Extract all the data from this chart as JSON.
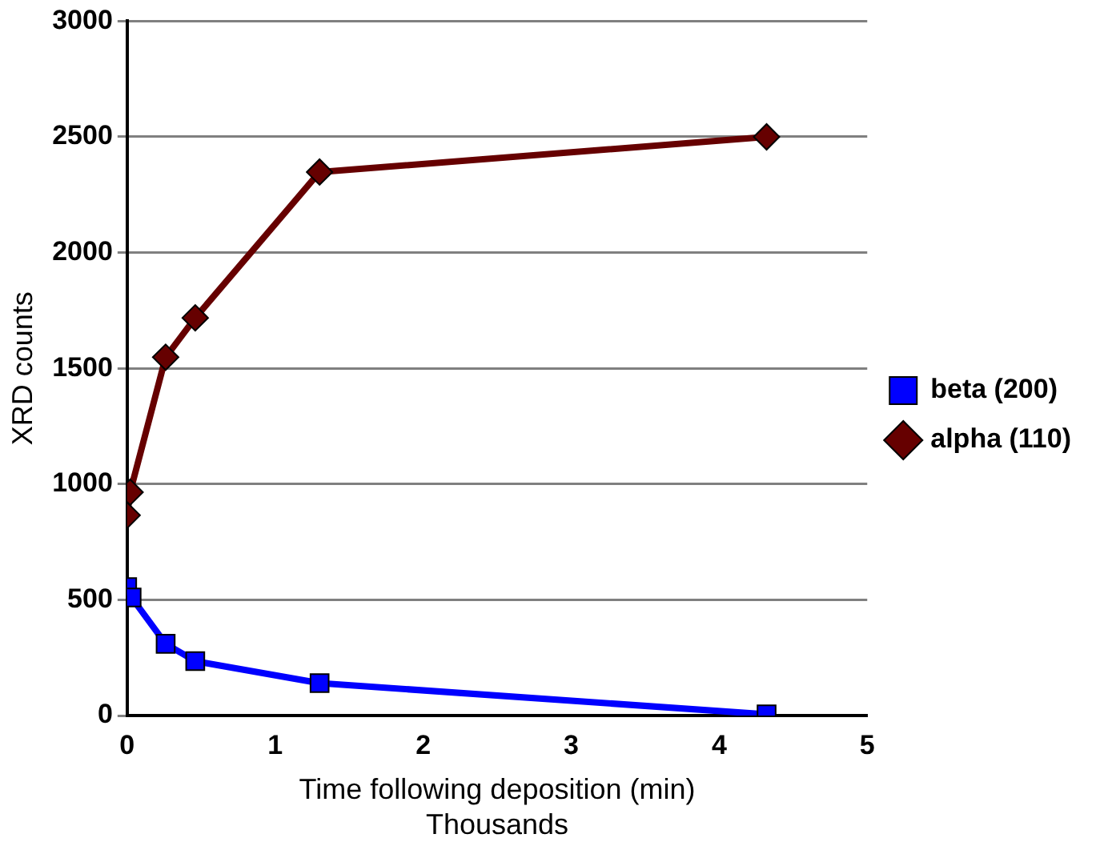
{
  "chart_data": {
    "type": "line",
    "xlabel": "Time following deposition (min)",
    "ylabel": "XRD counts",
    "annotations": [
      "Thousands"
    ],
    "series": [
      {
        "name": "beta (200)",
        "color": "#0000ff",
        "marker": "square",
        "x": [
          0,
          0.03,
          0.26,
          0.46,
          1.3,
          4.32
        ],
        "values": [
          555,
          510,
          310,
          235,
          140,
          5
        ]
      },
      {
        "name": "alpha (110)",
        "color": "#660000",
        "marker": "diamond",
        "x": [
          0,
          0.02,
          0.26,
          0.46,
          1.3,
          4.32
        ],
        "values": [
          865,
          965,
          1548,
          1718,
          2348,
          2500
        ]
      }
    ],
    "xlim": [
      0,
      5
    ],
    "xticks": [
      0,
      1,
      2,
      3,
      4,
      5
    ],
    "ylim": [
      0,
      3000
    ],
    "yticks": [
      0,
      500,
      1000,
      1500,
      2000,
      2500,
      3000
    ],
    "grid": "y",
    "legend": "right"
  }
}
